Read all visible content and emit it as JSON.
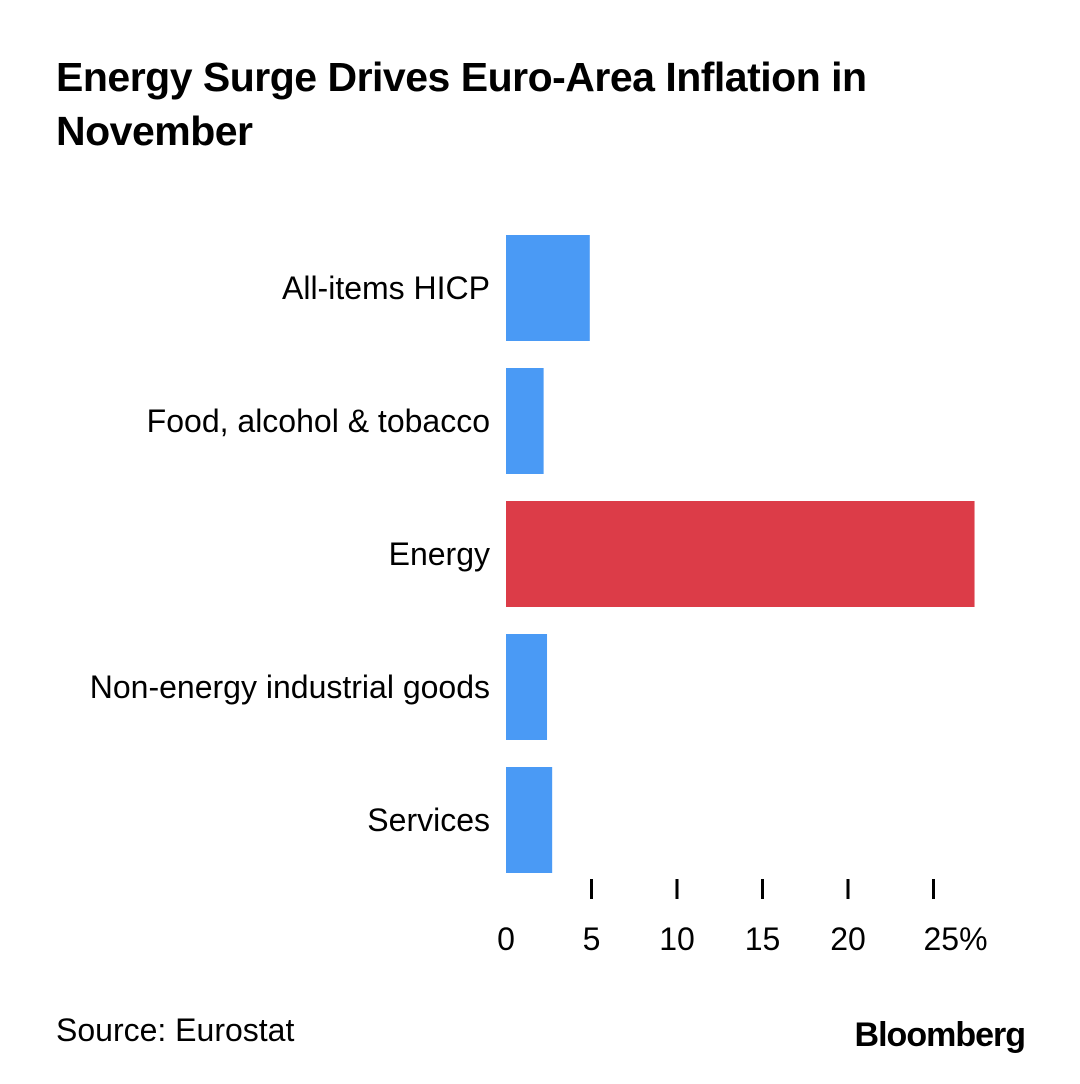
{
  "title": "Energy Surge Drives Euro-Area Inflation in November",
  "source": "Source: Eurostat",
  "brand": "Bloomberg",
  "colors": {
    "default_bar": "#4a9af5",
    "highlight_bar": "#dc3c48",
    "text": "#000000",
    "axis": "#000000"
  },
  "chart_data": {
    "type": "bar",
    "orientation": "horizontal",
    "title": "Energy Surge Drives Euro-Area Inflation in November",
    "categories": [
      "All-items HICP",
      "Food, alcohol & tobacco",
      "Energy",
      "Non-energy industrial goods",
      "Services"
    ],
    "values": [
      4.9,
      2.2,
      27.4,
      2.4,
      2.7
    ],
    "highlight": [
      false,
      false,
      true,
      false,
      false
    ],
    "xlim": [
      0,
      25
    ],
    "xticks": [
      0,
      5,
      10,
      15,
      20,
      25
    ],
    "xtick_labels": [
      "0",
      "5",
      "10",
      "15",
      "20",
      "25%"
    ],
    "xlabel": "",
    "ylabel": "",
    "grid": false,
    "legend": "none"
  }
}
